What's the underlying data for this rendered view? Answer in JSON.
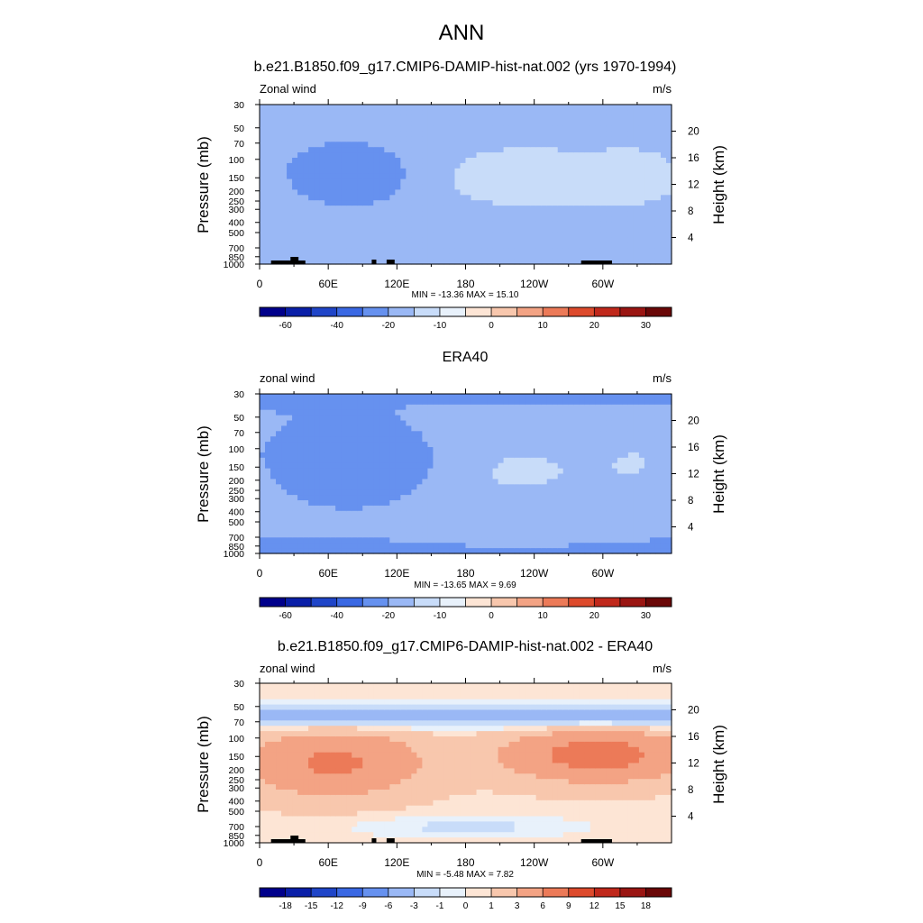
{
  "figure": {
    "title": "ANN"
  },
  "panels": [
    {
      "id": "model",
      "title": "b.e21.B1850.f09_g17.CMIP6-DAMIP-hist-nat.002 (yrs 1970-1994)",
      "left_label": "Zonal wind",
      "right_label": "m/s",
      "ylabel": "Pressure (mb)",
      "y2label": "Height (km)",
      "stats": "MIN = -13.36  MAX =  15.10",
      "colorbar_labels": [
        "-60",
        "-40",
        "-20",
        "-10",
        "0",
        "10",
        "20",
        "30"
      ]
    },
    {
      "id": "obs",
      "title": "ERA40",
      "left_label": "zonal wind",
      "right_label": "m/s",
      "ylabel": "Pressure (mb)",
      "y2label": "Height (km)",
      "stats": "MIN = -13.65  MAX =   9.69",
      "colorbar_labels": [
        "-60",
        "-40",
        "-20",
        "-10",
        "0",
        "10",
        "20",
        "30"
      ]
    },
    {
      "id": "diff",
      "title": "b.e21.B1850.f09_g17.CMIP6-DAMIP-hist-nat.002 - ERA40",
      "left_label": "zonal wind",
      "right_label": "m/s",
      "ylabel": "Pressure (mb)",
      "y2label": "Height (km)",
      "stats": "MIN =  -5.48  MAX =   7.82",
      "colorbar_labels": [
        "-18",
        "-15",
        "-12",
        "-9",
        "-6",
        "-3",
        "-1",
        "0",
        "1",
        "3",
        "6",
        "9",
        "12",
        "15",
        "18"
      ]
    }
  ],
  "chart_data": [
    {
      "type": "heatmap",
      "title": "b.e21.B1850.f09_g17.CMIP6-DAMIP-hist-nat.002 (yrs 1970-1994)",
      "subtitle": "Zonal wind",
      "units": "m/s",
      "xlabel": "",
      "ylabel": "Pressure (mb)",
      "y2label": "Height (km)",
      "x_ticks": [
        "0",
        "60E",
        "120E",
        "180",
        "120W",
        "60W"
      ],
      "x_tick_values": [
        0,
        60,
        120,
        180,
        240,
        300
      ],
      "xlim": [
        0,
        360
      ],
      "y_ticks": [
        30,
        50,
        70,
        100,
        150,
        200,
        250,
        300,
        400,
        500,
        700,
        850,
        1000
      ],
      "ylim": [
        1000,
        30
      ],
      "y_scale": "log",
      "y2_ticks": [
        4,
        8,
        12,
        16,
        20
      ],
      "min": -13.36,
      "max": 15.1,
      "levels": [
        -60,
        -40,
        -20,
        -10,
        0,
        10,
        20,
        30
      ],
      "colors": [
        "#00008b",
        "#0a1fa8",
        "#1f45c8",
        "#3a68e3",
        "#6691ef",
        "#9ab8f5",
        "#c8dcf9",
        "#e8f1fb",
        "#fde5d5",
        "#f8c7ad",
        "#f3a384",
        "#ec7a58",
        "#dd4a2c",
        "#c0281b",
        "#9a1512",
        "#6a0707"
      ],
      "colorbar_labels": [
        "-60",
        "-40",
        "-20",
        "-10",
        "0",
        "10",
        "20",
        "30"
      ]
    },
    {
      "type": "heatmap",
      "title": "ERA40",
      "subtitle": "zonal wind",
      "units": "m/s",
      "xlabel": "",
      "ylabel": "Pressure (mb)",
      "y2label": "Height (km)",
      "x_ticks": [
        "0",
        "60E",
        "120E",
        "180",
        "120W",
        "60W"
      ],
      "x_tick_values": [
        0,
        60,
        120,
        180,
        240,
        300
      ],
      "xlim": [
        0,
        360
      ],
      "y_ticks": [
        30,
        50,
        70,
        100,
        150,
        200,
        250,
        300,
        400,
        500,
        700,
        850,
        1000
      ],
      "ylim": [
        1000,
        30
      ],
      "y_scale": "log",
      "y2_ticks": [
        4,
        8,
        12,
        16,
        20
      ],
      "min": -13.65,
      "max": 9.69,
      "levels": [
        -60,
        -40,
        -20,
        -10,
        0,
        10,
        20,
        30
      ],
      "colors": [
        "#00008b",
        "#0a1fa8",
        "#1f45c8",
        "#3a68e3",
        "#6691ef",
        "#9ab8f5",
        "#c8dcf9",
        "#e8f1fb",
        "#fde5d5",
        "#f8c7ad",
        "#f3a384",
        "#ec7a58",
        "#dd4a2c",
        "#c0281b",
        "#9a1512",
        "#6a0707"
      ],
      "colorbar_labels": [
        "-60",
        "-40",
        "-20",
        "-10",
        "0",
        "10",
        "20",
        "30"
      ]
    },
    {
      "type": "heatmap",
      "title": "b.e21.B1850.f09_g17.CMIP6-DAMIP-hist-nat.002 - ERA40",
      "subtitle": "zonal wind",
      "units": "m/s",
      "xlabel": "",
      "ylabel": "Pressure (mb)",
      "y2label": "Height (km)",
      "x_ticks": [
        "0",
        "60E",
        "120E",
        "180",
        "120W",
        "60W"
      ],
      "x_tick_values": [
        0,
        60,
        120,
        180,
        240,
        300
      ],
      "xlim": [
        0,
        360
      ],
      "y_ticks": [
        30,
        50,
        70,
        100,
        150,
        200,
        250,
        300,
        400,
        500,
        700,
        850,
        1000
      ],
      "ylim": [
        1000,
        30
      ],
      "y_scale": "log",
      "y2_ticks": [
        4,
        8,
        12,
        16,
        20
      ],
      "min": -5.48,
      "max": 7.82,
      "levels": [
        -18,
        -15,
        -12,
        -9,
        -6,
        -3,
        -1,
        0,
        1,
        3,
        6,
        9,
        12,
        15,
        18
      ],
      "colors": [
        "#00008b",
        "#0a1fa8",
        "#1f45c8",
        "#3a68e3",
        "#6691ef",
        "#9ab8f5",
        "#c8dcf9",
        "#e8f1fb",
        "#fde5d5",
        "#f8c7ad",
        "#f3a384",
        "#ec7a58",
        "#dd4a2c",
        "#c0281b",
        "#9a1512",
        "#6a0707"
      ],
      "colorbar_labels": [
        "-18",
        "-15",
        "-12",
        "-9",
        "-6",
        "-3",
        "-1",
        "0",
        "1",
        "3",
        "6",
        "9",
        "12",
        "15",
        "18"
      ]
    }
  ]
}
